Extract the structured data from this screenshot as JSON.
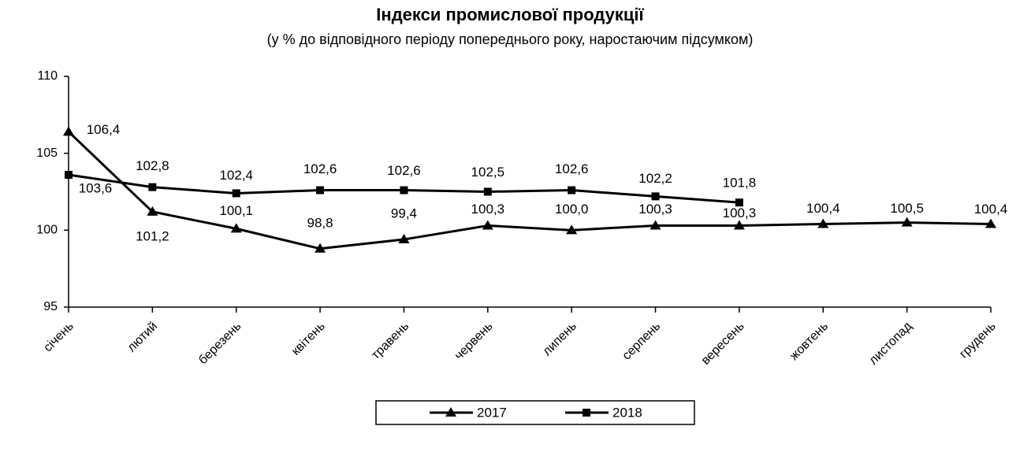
{
  "chart_data": {
    "type": "line",
    "title": "Індекси промислової продукції",
    "subtitle": "(у % до відповідного періоду попереднього року, наростаючим підсумком)",
    "categories": [
      "січень",
      "лютий",
      "березень",
      "квітень",
      "травень",
      "червень",
      "липень",
      "серпень",
      "вересень",
      "жовтень",
      "листопад",
      "грудень"
    ],
    "series": [
      {
        "name": "2017",
        "color": "#000000",
        "marker": "triangle",
        "values": [
          106.4,
          101.2,
          100.1,
          98.8,
          99.4,
          100.3,
          100.0,
          100.3,
          100.3,
          100.4,
          100.5,
          100.4
        ],
        "value_labels": [
          "106,4",
          "101,2",
          "100,1",
          "98,8",
          "99,4",
          "100,3",
          "100,0",
          "100,3",
          "100,3",
          "100,4",
          "100,5",
          "100,4"
        ]
      },
      {
        "name": "2018",
        "color": "#000000",
        "marker": "square",
        "values": [
          103.6,
          102.8,
          102.4,
          102.6,
          102.6,
          102.5,
          102.6,
          102.2,
          101.8,
          null,
          null,
          null
        ],
        "value_labels": [
          "103,6",
          "102,8",
          "102,4",
          "102,6",
          "102,6",
          "102,5",
          "102,6",
          "102,2",
          "101,8",
          null,
          null,
          null
        ]
      }
    ],
    "ylim": [
      95,
      110
    ],
    "yticks": [
      95,
      100,
      105,
      110
    ],
    "grid": false,
    "legend": "bottom"
  }
}
